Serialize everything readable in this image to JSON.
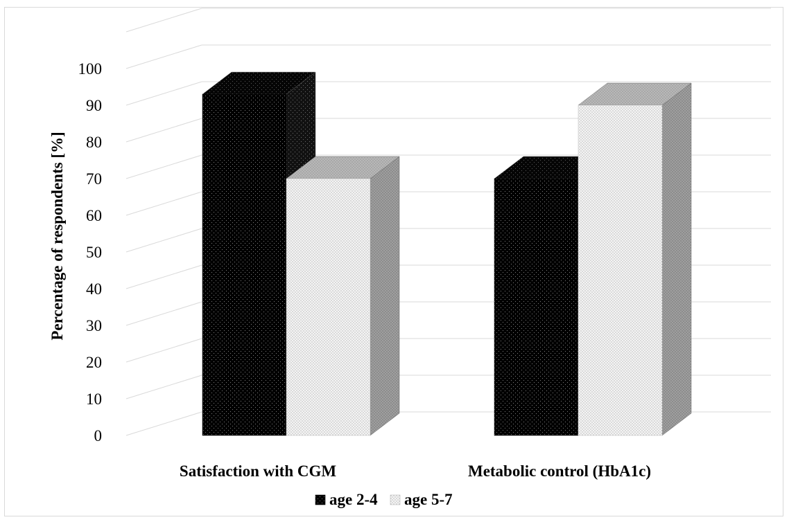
{
  "chart_data": {
    "type": "bar",
    "categories": [
      "Satisfaction with CGM",
      "Metabolic control (HbA1c)"
    ],
    "series": [
      {
        "name": "age 2-4",
        "values": [
          93,
          70
        ],
        "color": "#000000",
        "pattern": "dense-dots"
      },
      {
        "name": "age 5-7",
        "values": [
          70,
          90
        ],
        "color": "#f2f2f2",
        "pattern": "light-dots"
      }
    ],
    "ylabel": "Percentage of respondents [%]",
    "xlabel": "",
    "ylim": [
      0,
      100
    ],
    "yticks": [
      "0",
      "10",
      "20",
      "30",
      "40",
      "50",
      "60",
      "70",
      "80",
      "90",
      "100"
    ],
    "grid": true,
    "three_d": true,
    "legend_position": "bottom"
  }
}
